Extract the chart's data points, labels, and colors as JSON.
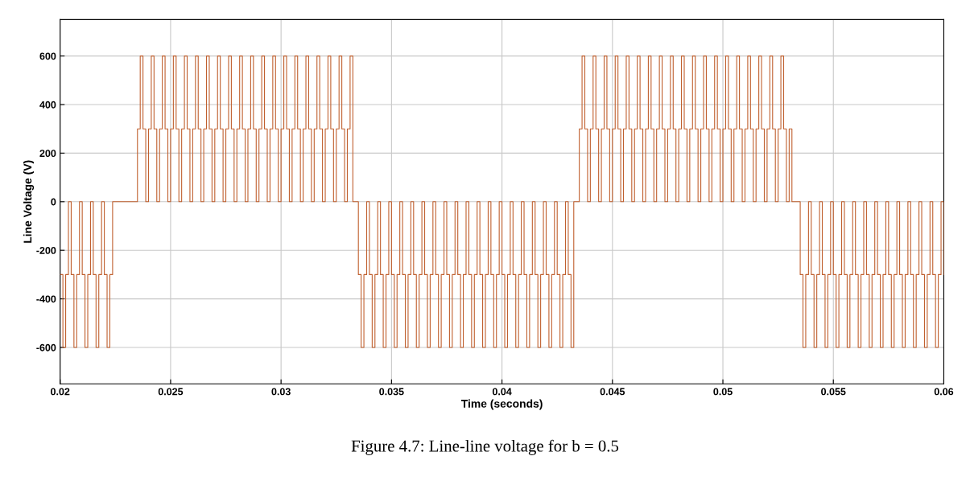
{
  "chart_data": {
    "type": "step",
    "xlabel": "Time (seconds)",
    "ylabel": "Line Voltage (V)",
    "annotations": [
      "Figure 4.7: Line-line voltage for b = 0.5"
    ],
    "xlim": [
      0.02,
      0.06
    ],
    "xticks": [
      0.02,
      0.025,
      0.03,
      0.035,
      0.04,
      0.045,
      0.05,
      0.055,
      0.06
    ],
    "ylim": [
      -750,
      750
    ],
    "yticks": [
      -600,
      -400,
      -200,
      0,
      200,
      400,
      600
    ],
    "grid": true,
    "line_style": "solid",
    "marker": "none",
    "series": [
      {
        "color": "#c0602f",
        "x": [
          0.02,
          0.020125,
          0.02025,
          0.020375,
          0.0205,
          0.020625,
          0.02075,
          0.020875,
          0.021,
          0.021125,
          0.02125,
          0.021375,
          0.0215,
          0.021625,
          0.02175,
          0.021875,
          0.022,
          0.022125,
          0.02225,
          0.022375,
          0.0225,
          0.022625,
          0.02275,
          0.022875,
          0.023,
          0.023125,
          0.02325,
          0.023375,
          0.0235,
          0.023625,
          0.02375,
          0.023875,
          0.024,
          0.024125,
          0.02425,
          0.024375,
          0.0245,
          0.024625,
          0.02475,
          0.024875,
          0.025,
          0.025125,
          0.02525,
          0.025375,
          0.0255,
          0.025625,
          0.02575,
          0.025875,
          0.026,
          0.026125,
          0.02625,
          0.026375,
          0.0265,
          0.026625,
          0.02675,
          0.026875,
          0.027,
          0.027125,
          0.02725,
          0.027375,
          0.0275,
          0.027625,
          0.02775,
          0.027875,
          0.028,
          0.028125,
          0.02825,
          0.028375,
          0.0285,
          0.028625,
          0.02875,
          0.028875,
          0.029,
          0.029125,
          0.02925,
          0.029375,
          0.0295,
          0.029625,
          0.02975,
          0.029875,
          0.03,
          0.030125,
          0.03025,
          0.030375,
          0.0305,
          0.030625,
          0.03075,
          0.030875,
          0.031,
          0.031125,
          0.03125,
          0.031375,
          0.0315,
          0.031625,
          0.03175,
          0.031875,
          0.032,
          0.032125,
          0.03225,
          0.032375,
          0.0325,
          0.032625,
          0.03275,
          0.032875,
          0.033,
          0.033125,
          0.03325,
          0.033375,
          0.0335,
          0.033625,
          0.03375,
          0.033875,
          0.034,
          0.034125,
          0.03425,
          0.034375,
          0.0345,
          0.034625,
          0.03475,
          0.034875,
          0.035,
          0.035125,
          0.03525,
          0.035375,
          0.0355,
          0.035625,
          0.03575,
          0.035875,
          0.036,
          0.036125,
          0.03625,
          0.036375,
          0.0365,
          0.036625,
          0.03675,
          0.036875,
          0.037,
          0.037125,
          0.03725,
          0.037375,
          0.0375,
          0.037625,
          0.03775,
          0.037875,
          0.038,
          0.038125,
          0.03825,
          0.038375,
          0.0385,
          0.038625,
          0.03875,
          0.038875,
          0.039,
          0.039125,
          0.03925,
          0.039375,
          0.0395,
          0.039625,
          0.03975,
          0.039875,
          0.04,
          0.040125,
          0.04025,
          0.040375,
          0.0405,
          0.040625,
          0.04075,
          0.040875,
          0.041,
          0.041125,
          0.04125,
          0.041375,
          0.0415,
          0.041625,
          0.04175,
          0.041875,
          0.042,
          0.042125,
          0.04225,
          0.042375,
          0.0425,
          0.042625,
          0.04275,
          0.042875,
          0.043,
          0.043125,
          0.04325,
          0.043375,
          0.0435,
          0.043625,
          0.04375,
          0.043875,
          0.044,
          0.044125,
          0.04425,
          0.044375,
          0.0445,
          0.044625,
          0.04475,
          0.044875,
          0.045,
          0.045125,
          0.04525,
          0.045375,
          0.0455,
          0.045625,
          0.04575,
          0.045875,
          0.046,
          0.046125,
          0.04625,
          0.046375,
          0.0465,
          0.046625,
          0.04675,
          0.046875,
          0.047,
          0.047125,
          0.04725,
          0.047375,
          0.0475,
          0.047625,
          0.04775,
          0.047875,
          0.048,
          0.048125,
          0.04825,
          0.048375,
          0.0485,
          0.048625,
          0.04875,
          0.048875,
          0.049,
          0.049125,
          0.04925,
          0.049375,
          0.0495,
          0.049625,
          0.04975,
          0.049875,
          0.05,
          0.050125,
          0.05025,
          0.050375,
          0.0505,
          0.050625,
          0.05075,
          0.050875,
          0.051,
          0.051125,
          0.05125,
          0.051375,
          0.0515,
          0.051625,
          0.05175,
          0.051875,
          0.052,
          0.052125,
          0.05225,
          0.052375,
          0.0525,
          0.052625,
          0.05275,
          0.052875,
          0.053,
          0.053125,
          0.05325,
          0.053375,
          0.0535,
          0.053625,
          0.05375,
          0.053875,
          0.054,
          0.054125,
          0.05425,
          0.054375,
          0.0545,
          0.054625,
          0.05475,
          0.054875,
          0.055,
          0.055125,
          0.05525,
          0.055375,
          0.0555,
          0.055625,
          0.05575,
          0.055875,
          0.056,
          0.056125,
          0.05625,
          0.056375,
          0.0565,
          0.056625,
          0.05675,
          0.056875,
          0.057,
          0.057125,
          0.05725,
          0.057375,
          0.0575,
          0.057625,
          0.05775,
          0.057875,
          0.058,
          0.058125,
          0.05825,
          0.058375,
          0.0585,
          0.058625,
          0.05875,
          0.058875,
          0.059,
          0.059125,
          0.05925,
          0.059375,
          0.0595,
          0.059625,
          0.05975,
          0.059875,
          0.06
        ],
        "values": [
          -300,
          -600,
          -300,
          0,
          -300,
          -600,
          -300,
          0,
          -300,
          -600,
          -300,
          0,
          -300,
          -600,
          -300,
          0,
          -300,
          -600,
          -300,
          0,
          0,
          0,
          0,
          0,
          0,
          0,
          0,
          0,
          300,
          600,
          300,
          0,
          300,
          600,
          300,
          0,
          300,
          600,
          300,
          0,
          300,
          600,
          300,
          0,
          300,
          600,
          300,
          0,
          300,
          600,
          300,
          0,
          300,
          600,
          300,
          0,
          300,
          600,
          300,
          0,
          300,
          600,
          300,
          0,
          300,
          600,
          300,
          0,
          300,
          600,
          300,
          0,
          300,
          600,
          300,
          0,
          300,
          600,
          300,
          0,
          300,
          600,
          300,
          0,
          300,
          600,
          300,
          0,
          300,
          600,
          300,
          0,
          300,
          600,
          300,
          0,
          300,
          600,
          300,
          0,
          300,
          600,
          300,
          0,
          300,
          600,
          0,
          0,
          -300,
          -600,
          -300,
          0,
          -300,
          -600,
          -300,
          0,
          -300,
          -600,
          -300,
          0,
          -300,
          -600,
          -300,
          0,
          -300,
          -600,
          -300,
          0,
          -300,
          -600,
          -300,
          0,
          -300,
          -600,
          -300,
          0,
          -300,
          -600,
          -300,
          0,
          -300,
          -600,
          -300,
          0,
          -300,
          -600,
          -300,
          0,
          -300,
          -600,
          -300,
          0,
          -300,
          -600,
          -300,
          0,
          -300,
          -600,
          -300,
          0,
          -300,
          -600,
          -300,
          0,
          -300,
          -600,
          -300,
          0,
          -300,
          -600,
          -300,
          0,
          -300,
          -600,
          -300,
          0,
          -300,
          -600,
          -300,
          0,
          -300,
          -600,
          -300,
          0,
          -300,
          -600,
          0,
          0,
          300,
          600,
          300,
          0,
          300,
          600,
          300,
          0,
          300,
          600,
          300,
          0,
          300,
          600,
          300,
          0,
          300,
          600,
          300,
          0,
          300,
          600,
          300,
          0,
          300,
          600,
          300,
          0,
          300,
          600,
          300,
          0,
          300,
          600,
          300,
          0,
          300,
          600,
          300,
          0,
          300,
          600,
          300,
          0,
          300,
          600,
          300,
          0,
          300,
          600,
          300,
          0,
          300,
          600,
          300,
          0,
          300,
          600,
          300,
          0,
          300,
          600,
          300,
          0,
          300,
          600,
          300,
          0,
          300,
          600,
          300,
          0,
          300,
          600,
          300,
          0,
          300,
          0,
          0,
          0,
          -300,
          -600,
          -300,
          0,
          -300,
          -600,
          -300,
          0,
          -300,
          -600,
          -300,
          0,
          -300,
          -600,
          -300,
          0,
          -300,
          -600,
          -300,
          0,
          -300,
          -600,
          -300,
          0,
          -300,
          -600,
          -300,
          0,
          -300,
          -600,
          -300,
          0,
          -300,
          -600,
          -300,
          0,
          -300,
          -600,
          -300,
          0,
          -300,
          -600,
          -300,
          0,
          -300,
          -600,
          -300,
          0,
          -300,
          -600,
          -300,
          0,
          -300
        ]
      }
    ]
  }
}
